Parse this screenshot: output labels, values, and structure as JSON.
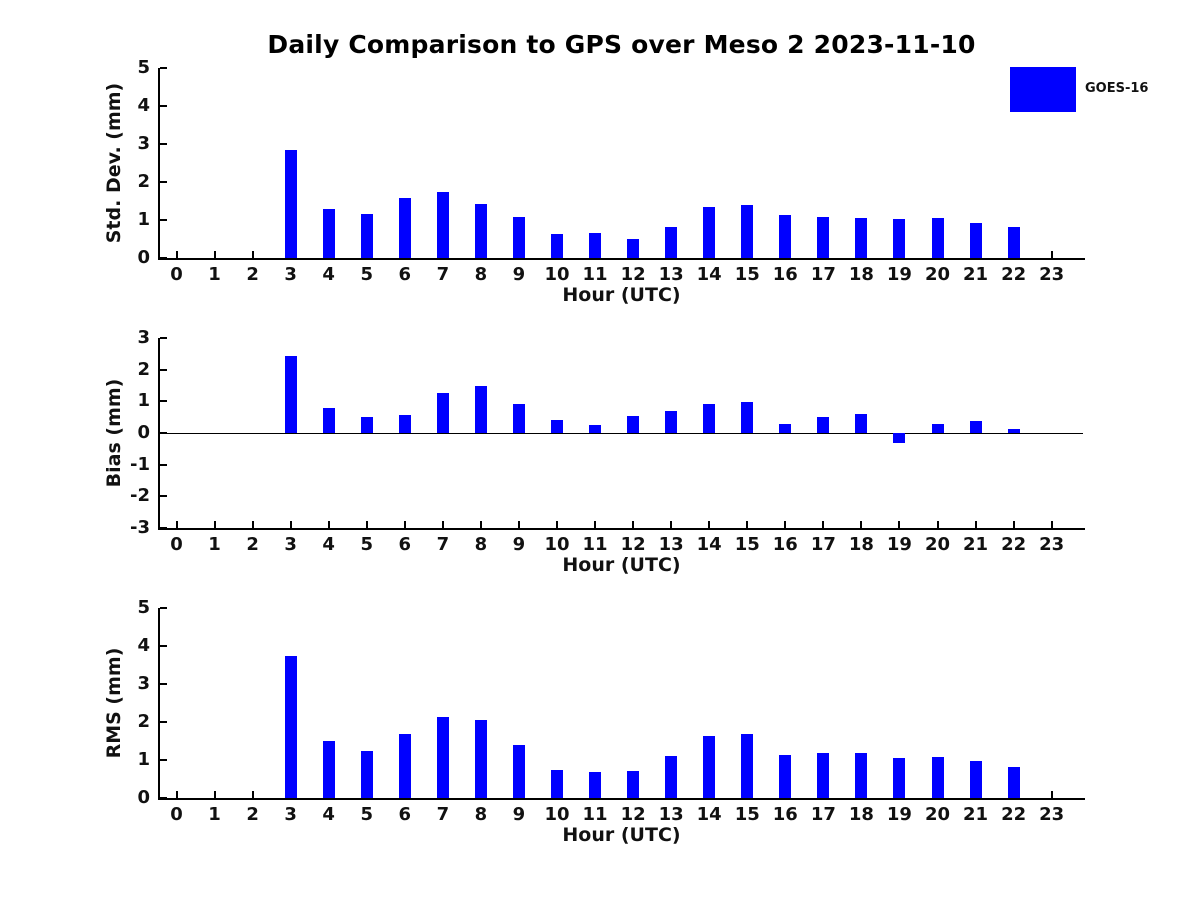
{
  "title": "Daily Comparison to GPS over Meso 2 2023-11-10",
  "legend": {
    "label": "GOES-16",
    "swatch_color": "#0000ff"
  },
  "colors": {
    "bar": "#0000ff",
    "axis": "#000000",
    "text": "#111111",
    "background": "#ffffff"
  },
  "chart_data": [
    {
      "type": "bar",
      "series_name": "GOES-16",
      "ylabel": "Std. Dev. (mm)",
      "xlabel": "Hour (UTC)",
      "x": [
        0,
        1,
        2,
        3,
        4,
        5,
        6,
        7,
        8,
        9,
        10,
        11,
        12,
        13,
        14,
        15,
        16,
        17,
        18,
        19,
        20,
        21,
        22,
        23
      ],
      "values": [
        null,
        null,
        null,
        2.85,
        1.28,
        1.17,
        1.58,
        1.73,
        1.42,
        1.08,
        0.63,
        0.66,
        0.5,
        0.82,
        1.33,
        1.4,
        1.12,
        1.08,
        1.05,
        1.02,
        1.05,
        0.92,
        0.81,
        null
      ],
      "ylim": [
        0,
        5
      ],
      "yticks": [
        0,
        1,
        2,
        3,
        4,
        5
      ],
      "grid": false,
      "zero_line": false,
      "legend_position": "top-right"
    },
    {
      "type": "bar",
      "series_name": "GOES-16",
      "ylabel": "Bias (mm)",
      "xlabel": "Hour (UTC)",
      "x": [
        0,
        1,
        2,
        3,
        4,
        5,
        6,
        7,
        8,
        9,
        10,
        11,
        12,
        13,
        14,
        15,
        16,
        17,
        18,
        19,
        20,
        21,
        22,
        23
      ],
      "values": [
        null,
        null,
        null,
        2.42,
        0.79,
        0.51,
        0.57,
        1.25,
        1.47,
        0.91,
        0.41,
        0.26,
        0.54,
        0.71,
        0.93,
        0.97,
        0.3,
        0.5,
        0.61,
        -0.32,
        0.27,
        0.39,
        0.14,
        null
      ],
      "ylim": [
        -3,
        3
      ],
      "yticks": [
        3,
        2,
        1,
        0,
        -1,
        -2,
        -3
      ],
      "grid": false,
      "zero_line": true,
      "legend_position": "none"
    },
    {
      "type": "bar",
      "series_name": "GOES-16",
      "ylabel": "RMS (mm)",
      "xlabel": "Hour (UTC)",
      "x": [
        0,
        1,
        2,
        3,
        4,
        5,
        6,
        7,
        8,
        9,
        10,
        11,
        12,
        13,
        14,
        15,
        16,
        17,
        18,
        19,
        20,
        21,
        22,
        23
      ],
      "values": [
        null,
        null,
        null,
        3.73,
        1.5,
        1.25,
        1.68,
        2.13,
        2.05,
        1.4,
        0.74,
        0.68,
        0.72,
        1.1,
        1.62,
        1.68,
        1.13,
        1.18,
        1.18,
        1.05,
        1.08,
        0.97,
        0.81,
        null
      ],
      "ylim": [
        0,
        5
      ],
      "yticks": [
        0,
        1,
        2,
        3,
        4,
        5
      ],
      "grid": false,
      "zero_line": false,
      "legend_position": "none"
    }
  ]
}
